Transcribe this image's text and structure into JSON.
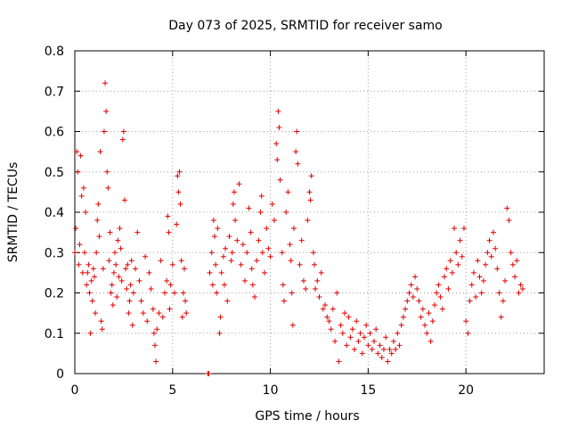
{
  "chart_data": {
    "type": "scatter",
    "title": "Day 073 of 2025, SRMTID for receiver samo",
    "xlabel": "GPS time / hours",
    "ylabel": "SRMTID / TECUs",
    "xlim": [
      0,
      24
    ],
    "ylim": [
      0,
      0.8
    ],
    "xticks": [
      0,
      5,
      10,
      15,
      20
    ],
    "xtick_labels": [
      "0",
      "5",
      "10",
      "15",
      "20"
    ],
    "yticks": [
      0,
      0.1,
      0.2,
      0.3,
      0.4,
      0.5,
      0.6,
      0.7,
      0.8
    ],
    "ytick_labels": [
      "0",
      "0.1",
      "0.2",
      "0.3",
      "0.4",
      "0.5",
      "0.6",
      "0.7",
      "0.8"
    ],
    "grid": true,
    "marker": "+",
    "color": "#e00000",
    "series": [
      {
        "name": "SRMTID",
        "points": [
          [
            0.0,
            0.3
          ],
          [
            0.05,
            0.36
          ],
          [
            0.1,
            0.55
          ],
          [
            0.15,
            0.5
          ],
          [
            0.2,
            0.27
          ],
          [
            0.25,
            0.32
          ],
          [
            0.3,
            0.54
          ],
          [
            0.35,
            0.44
          ],
          [
            0.4,
            0.25
          ],
          [
            0.45,
            0.46
          ],
          [
            0.5,
            0.3
          ],
          [
            0.55,
            0.4
          ],
          [
            0.6,
            0.22
          ],
          [
            0.65,
            0.25
          ],
          [
            0.7,
            0.27
          ],
          [
            0.75,
            0.2
          ],
          [
            0.8,
            0.1
          ],
          [
            0.85,
            0.23
          ],
          [
            0.9,
            0.18
          ],
          [
            0.95,
            0.26
          ],
          [
            1.0,
            0.24
          ],
          [
            1.05,
            0.15
          ],
          [
            1.1,
            0.3
          ],
          [
            1.15,
            0.38
          ],
          [
            1.2,
            0.42
          ],
          [
            1.25,
            0.34
          ],
          [
            1.3,
            0.55
          ],
          [
            1.35,
            0.13
          ],
          [
            1.4,
            0.11
          ],
          [
            1.45,
            0.26
          ],
          [
            1.5,
            0.6
          ],
          [
            1.55,
            0.72
          ],
          [
            1.6,
            0.65
          ],
          [
            1.65,
            0.5
          ],
          [
            1.7,
            0.46
          ],
          [
            1.75,
            0.28
          ],
          [
            1.8,
            0.35
          ],
          [
            1.85,
            0.2
          ],
          [
            1.9,
            0.22
          ],
          [
            1.95,
            0.17
          ],
          [
            2.0,
            0.25
          ],
          [
            2.05,
            0.3
          ],
          [
            2.1,
            0.27
          ],
          [
            2.15,
            0.19
          ],
          [
            2.2,
            0.33
          ],
          [
            2.25,
            0.24
          ],
          [
            2.3,
            0.36
          ],
          [
            2.35,
            0.31
          ],
          [
            2.4,
            0.23
          ],
          [
            2.45,
            0.58
          ],
          [
            2.5,
            0.6
          ],
          [
            2.55,
            0.43
          ],
          [
            2.6,
            0.26
          ],
          [
            2.65,
            0.21
          ],
          [
            2.7,
            0.27
          ],
          [
            2.75,
            0.15
          ],
          [
            2.8,
            0.18
          ],
          [
            2.85,
            0.22
          ],
          [
            2.9,
            0.28
          ],
          [
            2.95,
            0.12
          ],
          [
            3.0,
            0.2
          ],
          [
            3.1,
            0.26
          ],
          [
            3.2,
            0.35
          ],
          [
            3.3,
            0.23
          ],
          [
            3.4,
            0.18
          ],
          [
            3.5,
            0.15
          ],
          [
            3.6,
            0.29
          ],
          [
            3.7,
            0.13
          ],
          [
            3.8,
            0.25
          ],
          [
            3.9,
            0.21
          ],
          [
            4.0,
            0.16
          ],
          [
            4.05,
            0.1
          ],
          [
            4.1,
            0.07
          ],
          [
            4.15,
            0.03
          ],
          [
            4.2,
            0.11
          ],
          [
            4.3,
            0.15
          ],
          [
            4.4,
            0.28
          ],
          [
            4.5,
            0.14
          ],
          [
            4.6,
            0.2
          ],
          [
            4.7,
            0.23
          ],
          [
            4.75,
            0.39
          ],
          [
            4.8,
            0.35
          ],
          [
            4.85,
            0.16
          ],
          [
            4.9,
            0.22
          ],
          [
            5.0,
            0.27
          ],
          [
            5.1,
            0.2
          ],
          [
            5.2,
            0.37
          ],
          [
            5.25,
            0.49
          ],
          [
            5.3,
            0.45
          ],
          [
            5.35,
            0.5
          ],
          [
            5.4,
            0.42
          ],
          [
            5.45,
            0.28
          ],
          [
            5.5,
            0.14
          ],
          [
            5.55,
            0.2
          ],
          [
            5.6,
            0.26
          ],
          [
            5.65,
            0.18
          ],
          [
            5.7,
            0.15
          ],
          [
            6.8,
            0.0
          ],
          [
            6.85,
            0.0
          ],
          [
            6.9,
            0.25
          ],
          [
            7.0,
            0.3
          ],
          [
            7.05,
            0.22
          ],
          [
            7.1,
            0.38
          ],
          [
            7.15,
            0.34
          ],
          [
            7.2,
            0.27
          ],
          [
            7.25,
            0.2
          ],
          [
            7.3,
            0.36
          ],
          [
            7.4,
            0.1
          ],
          [
            7.45,
            0.14
          ],
          [
            7.5,
            0.25
          ],
          [
            7.6,
            0.29
          ],
          [
            7.65,
            0.22
          ],
          [
            7.7,
            0.31
          ],
          [
            7.8,
            0.18
          ],
          [
            7.9,
            0.34
          ],
          [
            8.0,
            0.28
          ],
          [
            8.05,
            0.3
          ],
          [
            8.1,
            0.42
          ],
          [
            8.15,
            0.45
          ],
          [
            8.2,
            0.38
          ],
          [
            8.3,
            0.33
          ],
          [
            8.4,
            0.47
          ],
          [
            8.5,
            0.27
          ],
          [
            8.6,
            0.32
          ],
          [
            8.7,
            0.23
          ],
          [
            8.8,
            0.3
          ],
          [
            8.9,
            0.41
          ],
          [
            9.0,
            0.35
          ],
          [
            9.05,
            0.26
          ],
          [
            9.1,
            0.22
          ],
          [
            9.2,
            0.19
          ],
          [
            9.3,
            0.28
          ],
          [
            9.4,
            0.33
          ],
          [
            9.5,
            0.4
          ],
          [
            9.55,
            0.44
          ],
          [
            9.6,
            0.3
          ],
          [
            9.7,
            0.25
          ],
          [
            9.8,
            0.36
          ],
          [
            9.9,
            0.31
          ],
          [
            10.0,
            0.29
          ],
          [
            10.1,
            0.42
          ],
          [
            10.2,
            0.38
          ],
          [
            10.3,
            0.57
          ],
          [
            10.35,
            0.53
          ],
          [
            10.4,
            0.65
          ],
          [
            10.45,
            0.61
          ],
          [
            10.5,
            0.48
          ],
          [
            10.6,
            0.3
          ],
          [
            10.65,
            0.22
          ],
          [
            10.7,
            0.18
          ],
          [
            10.8,
            0.4
          ],
          [
            10.9,
            0.45
          ],
          [
            11.0,
            0.32
          ],
          [
            11.05,
            0.28
          ],
          [
            11.1,
            0.2
          ],
          [
            11.15,
            0.12
          ],
          [
            11.2,
            0.36
          ],
          [
            11.3,
            0.55
          ],
          [
            11.35,
            0.6
          ],
          [
            11.4,
            0.52
          ],
          [
            11.5,
            0.27
          ],
          [
            11.6,
            0.33
          ],
          [
            11.7,
            0.23
          ],
          [
            11.8,
            0.21
          ],
          [
            11.9,
            0.38
          ],
          [
            12.0,
            0.45
          ],
          [
            12.05,
            0.43
          ],
          [
            12.1,
            0.49
          ],
          [
            12.2,
            0.3
          ],
          [
            12.25,
            0.27
          ],
          [
            12.3,
            0.21
          ],
          [
            12.4,
            0.23
          ],
          [
            12.5,
            0.19
          ],
          [
            12.6,
            0.25
          ],
          [
            12.7,
            0.16
          ],
          [
            12.8,
            0.17
          ],
          [
            12.9,
            0.14
          ],
          [
            13.0,
            0.13
          ],
          [
            13.1,
            0.11
          ],
          [
            13.2,
            0.16
          ],
          [
            13.3,
            0.08
          ],
          [
            13.4,
            0.2
          ],
          [
            13.5,
            0.03
          ],
          [
            13.6,
            0.12
          ],
          [
            13.7,
            0.1
          ],
          [
            13.8,
            0.15
          ],
          [
            13.9,
            0.07
          ],
          [
            14.0,
            0.14
          ],
          [
            14.1,
            0.09
          ],
          [
            14.2,
            0.11
          ],
          [
            14.3,
            0.06
          ],
          [
            14.4,
            0.13
          ],
          [
            14.5,
            0.08
          ],
          [
            14.6,
            0.1
          ],
          [
            14.7,
            0.05
          ],
          [
            14.8,
            0.09
          ],
          [
            14.9,
            0.12
          ],
          [
            15.0,
            0.07
          ],
          [
            15.1,
            0.1
          ],
          [
            15.2,
            0.06
          ],
          [
            15.3,
            0.08
          ],
          [
            15.4,
            0.11
          ],
          [
            15.5,
            0.05
          ],
          [
            15.6,
            0.07
          ],
          [
            15.7,
            0.04
          ],
          [
            15.8,
            0.06
          ],
          [
            15.9,
            0.09
          ],
          [
            16.0,
            0.03
          ],
          [
            16.1,
            0.06
          ],
          [
            16.2,
            0.05
          ],
          [
            16.3,
            0.08
          ],
          [
            16.4,
            0.06
          ],
          [
            16.5,
            0.1
          ],
          [
            16.6,
            0.07
          ],
          [
            16.7,
            0.12
          ],
          [
            16.8,
            0.14
          ],
          [
            16.9,
            0.16
          ],
          [
            17.0,
            0.18
          ],
          [
            17.1,
            0.2
          ],
          [
            17.2,
            0.22
          ],
          [
            17.3,
            0.19
          ],
          [
            17.4,
            0.24
          ],
          [
            17.5,
            0.21
          ],
          [
            17.6,
            0.18
          ],
          [
            17.7,
            0.14
          ],
          [
            17.8,
            0.16
          ],
          [
            17.9,
            0.12
          ],
          [
            18.0,
            0.1
          ],
          [
            18.1,
            0.15
          ],
          [
            18.2,
            0.08
          ],
          [
            18.3,
            0.13
          ],
          [
            18.4,
            0.17
          ],
          [
            18.5,
            0.2
          ],
          [
            18.6,
            0.22
          ],
          [
            18.7,
            0.19
          ],
          [
            18.8,
            0.16
          ],
          [
            18.9,
            0.24
          ],
          [
            19.0,
            0.26
          ],
          [
            19.1,
            0.21
          ],
          [
            19.2,
            0.28
          ],
          [
            19.3,
            0.25
          ],
          [
            19.4,
            0.36
          ],
          [
            19.5,
            0.3
          ],
          [
            19.6,
            0.27
          ],
          [
            19.7,
            0.33
          ],
          [
            19.8,
            0.29
          ],
          [
            19.9,
            0.36
          ],
          [
            20.0,
            0.13
          ],
          [
            20.1,
            0.1
          ],
          [
            20.2,
            0.18
          ],
          [
            20.3,
            0.22
          ],
          [
            20.4,
            0.25
          ],
          [
            20.5,
            0.19
          ],
          [
            20.6,
            0.28
          ],
          [
            20.7,
            0.24
          ],
          [
            20.8,
            0.2
          ],
          [
            20.9,
            0.23
          ],
          [
            21.0,
            0.27
          ],
          [
            21.1,
            0.3
          ],
          [
            21.2,
            0.33
          ],
          [
            21.3,
            0.29
          ],
          [
            21.4,
            0.35
          ],
          [
            21.5,
            0.31
          ],
          [
            21.6,
            0.26
          ],
          [
            21.7,
            0.2
          ],
          [
            21.8,
            0.14
          ],
          [
            21.9,
            0.18
          ],
          [
            22.0,
            0.23
          ],
          [
            22.1,
            0.41
          ],
          [
            22.2,
            0.38
          ],
          [
            22.3,
            0.3
          ],
          [
            22.4,
            0.27
          ],
          [
            22.5,
            0.24
          ],
          [
            22.6,
            0.28
          ],
          [
            22.7,
            0.2
          ],
          [
            22.8,
            0.22
          ],
          [
            22.9,
            0.21
          ]
        ]
      }
    ]
  }
}
